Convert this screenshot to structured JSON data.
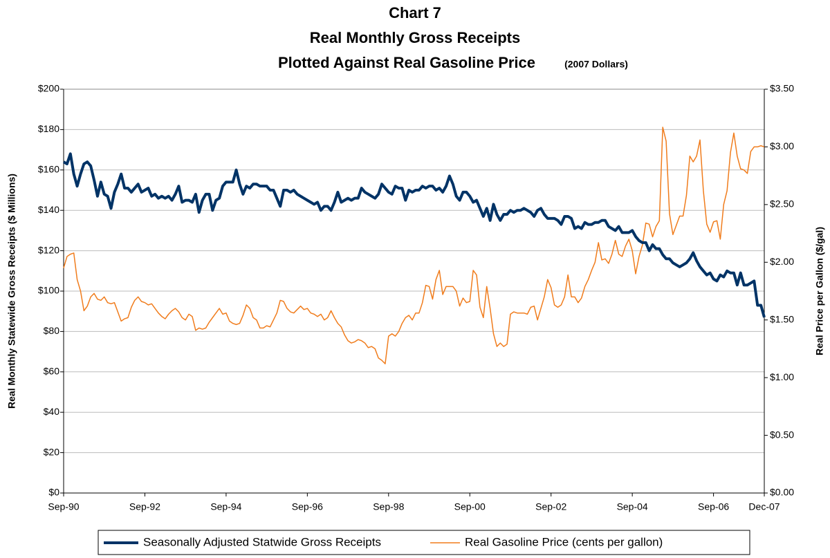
{
  "chart_data": {
    "type": "line",
    "title": [
      "Chart 7",
      "Real Monthly Gross Receipts",
      "Plotted Against Real Gasoline Price"
    ],
    "subtitle": "(2007 Dollars)",
    "y_label": "Real Monthly Statewide Gross Receipts ($ Millions)",
    "y2_label": "Real Price per Gallon ($/gal)",
    "categories": [
      "Sep-90",
      null,
      null,
      null,
      null,
      null,
      null,
      null,
      null,
      null,
      null,
      null,
      null,
      null,
      null,
      null,
      null,
      null,
      null,
      null,
      null,
      null,
      null,
      null,
      "Sep-92",
      null,
      null,
      null,
      null,
      null,
      null,
      null,
      null,
      null,
      null,
      null,
      null,
      null,
      null,
      null,
      null,
      null,
      null,
      null,
      null,
      null,
      null,
      null,
      "Sep-94",
      null,
      null,
      null,
      null,
      null,
      null,
      null,
      null,
      null,
      null,
      null,
      null,
      null,
      null,
      null,
      null,
      null,
      null,
      null,
      null,
      null,
      null,
      null,
      "Sep-96",
      null,
      null,
      null,
      null,
      null,
      null,
      null,
      null,
      null,
      null,
      null,
      null,
      null,
      null,
      null,
      null,
      null,
      null,
      null,
      null,
      null,
      null,
      null,
      "Sep-98",
      null,
      null,
      null,
      null,
      null,
      null,
      null,
      null,
      null,
      null,
      null,
      null,
      null,
      null,
      null,
      null,
      null,
      null,
      null,
      null,
      null,
      null,
      null,
      "Sep-00",
      null,
      null,
      null,
      null,
      null,
      null,
      null,
      null,
      null,
      null,
      null,
      null,
      null,
      null,
      null,
      null,
      null,
      null,
      null,
      null,
      null,
      null,
      null,
      "Sep-02",
      null,
      null,
      null,
      null,
      null,
      null,
      null,
      null,
      null,
      null,
      null,
      null,
      null,
      null,
      null,
      null,
      null,
      null,
      null,
      null,
      null,
      null,
      null,
      "Sep-04",
      null,
      null,
      null,
      null,
      null,
      null,
      null,
      null,
      null,
      null,
      null,
      null,
      null,
      null,
      null,
      null,
      null,
      null,
      null,
      null,
      null,
      null,
      null,
      "Sep-06",
      null,
      null,
      null,
      null,
      null,
      null,
      null,
      null,
      null,
      null,
      null,
      null,
      null,
      null,
      "Dec-07"
    ],
    "series": [
      {
        "name": "Seasonally Adjusted Statwide Gross Receipts",
        "color": "#003366",
        "axis": "y",
        "values": [
          164,
          163,
          168,
          158,
          152,
          158,
          163,
          164,
          162,
          155,
          147,
          154,
          148,
          147,
          141,
          149,
          153,
          158,
          151,
          151,
          149,
          151,
          153,
          149,
          150,
          151,
          147,
          148,
          146,
          147,
          146,
          147,
          145,
          148,
          152,
          144,
          145,
          145,
          144,
          148,
          139,
          145,
          148,
          148,
          140,
          145,
          146,
          152,
          154,
          154,
          154,
          160,
          153,
          148,
          152,
          151,
          153,
          153,
          152,
          152,
          152,
          150,
          150,
          146,
          142,
          150,
          150,
          149,
          150,
          148,
          147,
          146,
          145,
          144,
          143,
          144,
          140,
          142,
          142,
          140,
          144,
          149,
          144,
          145,
          146,
          145,
          146,
          146,
          151,
          149,
          148,
          147,
          146,
          148,
          153,
          151,
          149,
          148,
          152,
          151,
          151,
          145,
          150,
          149,
          150,
          150,
          152,
          151,
          152,
          152,
          150,
          151,
          149,
          152,
          157,
          153,
          147,
          145,
          149,
          149,
          147,
          144,
          145,
          141,
          137,
          141,
          135,
          143,
          138,
          135,
          138,
          138,
          140,
          139,
          140,
          140,
          141,
          140,
          139,
          137,
          140,
          141,
          138,
          136,
          136,
          136,
          135,
          133,
          137,
          137,
          136,
          131,
          132,
          131,
          134,
          133,
          133,
          134,
          134,
          135,
          135,
          132,
          131,
          130,
          132,
          129,
          129,
          129,
          130,
          127,
          125,
          124,
          124,
          120,
          123,
          121,
          121,
          118,
          116,
          116,
          114,
          113,
          112,
          113,
          114,
          116,
          119,
          115,
          112,
          110,
          108,
          109,
          106,
          105,
          108,
          107,
          110,
          109,
          109,
          103,
          109,
          103,
          103,
          104,
          105,
          93,
          93,
          87
        ]
      },
      {
        "name": "Real Gasoline Price (cents per gallon)",
        "color": "#f07c1c",
        "axis": "y2",
        "values": [
          1.95,
          2.05,
          2.07,
          2.08,
          1.85,
          1.75,
          1.58,
          1.62,
          1.7,
          1.73,
          1.68,
          1.67,
          1.7,
          1.65,
          1.64,
          1.65,
          1.57,
          1.49,
          1.51,
          1.52,
          1.61,
          1.67,
          1.7,
          1.66,
          1.65,
          1.63,
          1.64,
          1.6,
          1.56,
          1.53,
          1.51,
          1.55,
          1.58,
          1.6,
          1.57,
          1.52,
          1.5,
          1.55,
          1.53,
          1.41,
          1.43,
          1.42,
          1.43,
          1.48,
          1.52,
          1.56,
          1.6,
          1.55,
          1.56,
          1.49,
          1.47,
          1.46,
          1.47,
          1.54,
          1.63,
          1.6,
          1.52,
          1.5,
          1.43,
          1.43,
          1.45,
          1.44,
          1.5,
          1.56,
          1.67,
          1.66,
          1.6,
          1.57,
          1.56,
          1.59,
          1.62,
          1.59,
          1.6,
          1.56,
          1.55,
          1.53,
          1.55,
          1.5,
          1.52,
          1.58,
          1.52,
          1.47,
          1.44,
          1.37,
          1.32,
          1.3,
          1.31,
          1.33,
          1.32,
          1.3,
          1.26,
          1.27,
          1.25,
          1.17,
          1.15,
          1.12,
          1.36,
          1.38,
          1.36,
          1.4,
          1.47,
          1.52,
          1.54,
          1.5,
          1.56,
          1.56,
          1.65,
          1.8,
          1.79,
          1.68,
          1.85,
          1.93,
          1.72,
          1.79,
          1.79,
          1.79,
          1.75,
          1.62,
          1.69,
          1.65,
          1.66,
          1.93,
          1.89,
          1.61,
          1.52,
          1.79,
          1.6,
          1.38,
          1.27,
          1.3,
          1.27,
          1.29,
          1.55,
          1.57,
          1.56,
          1.56,
          1.56,
          1.55,
          1.61,
          1.62,
          1.5,
          1.6,
          1.7,
          1.85,
          1.78,
          1.63,
          1.61,
          1.63,
          1.7,
          1.89,
          1.7,
          1.7,
          1.65,
          1.69,
          1.79,
          1.85,
          1.93,
          2.0,
          2.17,
          2.02,
          2.03,
          1.99,
          2.07,
          2.19,
          2.07,
          2.05,
          2.14,
          2.2,
          2.1,
          1.9,
          2.05,
          2.15,
          2.34,
          2.33,
          2.22,
          2.31,
          2.36,
          3.17,
          3.05,
          2.42,
          2.24,
          2.32,
          2.4,
          2.4,
          2.58,
          2.92,
          2.87,
          2.92,
          3.06,
          2.62,
          2.33,
          2.26,
          2.35,
          2.36,
          2.2,
          2.5,
          2.62,
          2.95,
          3.12,
          2.92,
          2.81,
          2.8,
          2.77,
          2.96,
          3.0,
          3.0,
          3.01,
          3.0
        ]
      }
    ],
    "ylim": [
      0,
      200
    ],
    "yticks": [
      {
        "value": 0,
        "label": "$0"
      },
      {
        "value": 20,
        "label": "$20"
      },
      {
        "value": 40,
        "label": "$40"
      },
      {
        "value": 60,
        "label": "$60"
      },
      {
        "value": 80,
        "label": "$80"
      },
      {
        "value": 100,
        "label": "$100"
      },
      {
        "value": 120,
        "label": "$120"
      },
      {
        "value": 140,
        "label": "$140"
      },
      {
        "value": 160,
        "label": "$160"
      },
      {
        "value": 180,
        "label": "$180"
      },
      {
        "value": 200,
        "label": "$200"
      }
    ],
    "y2lim": [
      0,
      3.5
    ],
    "y2ticks": [
      {
        "value": 0,
        "label": "$0.00"
      },
      {
        "value": 0.5,
        "label": "$0.50"
      },
      {
        "value": 1,
        "label": "$1.00"
      },
      {
        "value": 1.5,
        "label": "$1.50"
      },
      {
        "value": 2,
        "label": "$2.00"
      },
      {
        "value": 2.5,
        "label": "$2.50"
      },
      {
        "value": 3,
        "label": "$3.00"
      },
      {
        "value": 3.5,
        "label": "$3.50"
      }
    ],
    "grid": true,
    "legend": "bottom"
  }
}
